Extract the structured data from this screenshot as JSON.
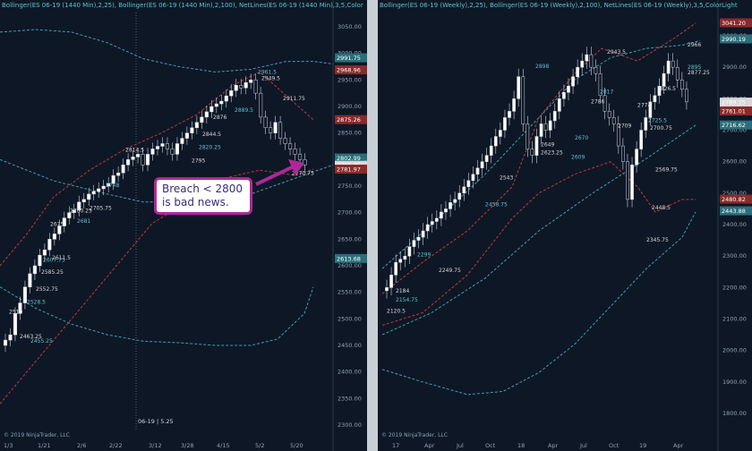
{
  "left": {
    "header": "Bollinger(ES 06-19 (1440 Min),2,25), Bollinger(ES 06-19 (1440 Min),2,100), NetLines(ES 06-19 (1440 Min),3,5,Color",
    "copyright": "© 2019 NinjaTrader, LLC",
    "session_label": "06-19 | 5.25",
    "callout_line1": "Breach < 2800",
    "callout_line2": "is bad news.",
    "y_ticks": [
      "3050.00",
      "3000.00",
      "2950.00",
      "2900.00",
      "2850.00",
      "2800.00",
      "2750.00",
      "2700.00",
      "2650.00",
      "2600.00",
      "2550.00",
      "2500.00",
      "2450.00",
      "2400.00",
      "2350.00",
      "2300.00"
    ],
    "x_ticks": [
      "1/3",
      "1/21",
      "2/6",
      "2/22",
      "3/12",
      "3/28",
      "4/15",
      "5/2",
      "5/20"
    ],
    "price_tags": [
      {
        "text": "2991.75",
        "color": "#2a6f7a"
      },
      {
        "text": "2968.96",
        "color": "#8a2a2a"
      },
      {
        "text": "2875.26",
        "color": "#8a2a2a"
      },
      {
        "text": "2802.99",
        "color": "#2a6f7a"
      },
      {
        "text": "2789.25",
        "color": "#d8d8d8"
      },
      {
        "text": "2781.97",
        "color": "#8a2a2a"
      },
      {
        "text": "2613.68",
        "color": "#2a6f7a"
      }
    ],
    "level_labels": [
      "2961.5",
      "2949.5",
      "2911.75",
      "2889.5",
      "2876",
      "2844.5",
      "2820.25",
      "2795",
      "2770.75",
      "2748",
      "2705.75",
      "2700.25",
      "2681",
      "2675",
      "2611.5",
      "2607.75",
      "2585.25",
      "2552.75",
      "2528.5",
      "2510",
      "2463.25",
      "2455.25",
      "2814.5"
    ]
  },
  "right": {
    "header": "Bollinger(ES 06-19 (Weekly),2,25), Bollinger(ES 06-19 (Weekly),2,100), NetLines(ES 06-19 (Weekly),3,5,Color",
    "header_suffix": "Light",
    "copyright": "© 2019 NinjaTrader, LLC",
    "y_ticks": [
      "3000.00",
      "2900.00",
      "2800.00",
      "2700.00",
      "2600.00",
      "2500.00",
      "2400.00",
      "2300.00",
      "2200.00",
      "2100.00",
      "2000.00",
      "1900.00",
      "1800.00"
    ],
    "x_ticks": [
      "17",
      "Apr",
      "Jul",
      "Oct",
      "18",
      "Apr",
      "Jul",
      "Oct",
      "19",
      "Apr"
    ],
    "price_tags": [
      {
        "text": "3041.20",
        "color": "#8a2a2a"
      },
      {
        "text": "2990.19",
        "color": "#2a6f7a"
      },
      {
        "text": "2789.25",
        "color": "#d8d8d8"
      },
      {
        "text": "2761.01",
        "color": "#8a2a2a"
      },
      {
        "text": "2716.62",
        "color": "#2a6f7a"
      },
      {
        "text": "2480.82",
        "color": "#8a2a2a"
      },
      {
        "text": "2443.88",
        "color": "#2a6f7a"
      }
    ],
    "level_labels": [
      "2898",
      "2966",
      "2943.5",
      "2895",
      "2877.25",
      "2826.5",
      "2817",
      "2786",
      "2774",
      "2725.5",
      "2709",
      "2700.75",
      "2670",
      "2649",
      "2623.25",
      "2609",
      "2569.75",
      "2543",
      "2458.75",
      "2448.5",
      "2345.75",
      "2299",
      "2249.75",
      "2184",
      "2154.75",
      "2120.5"
    ]
  }
}
